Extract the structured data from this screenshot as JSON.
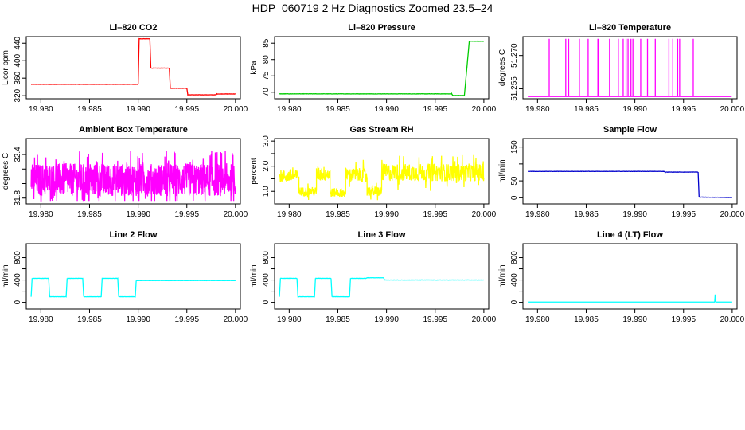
{
  "figure_title": "HDP_060719  2 Hz Diagnostics Zoomed 23.5–24",
  "chart_data": [
    {
      "type": "line",
      "title": "Li–820 CO2",
      "ylabel": "Licor ppm",
      "xlim": [
        19.9785,
        20.0005
      ],
      "xticks": [
        19.98,
        19.985,
        19.99,
        19.995,
        20.0
      ],
      "xtick_labels": [
        "19.980",
        "19.985",
        "19.990",
        "19.995",
        "20.000"
      ],
      "ylim": [
        313,
        455
      ],
      "yticks": [
        320,
        360,
        400,
        440
      ],
      "ytick_labels": [
        "320",
        "360",
        "400",
        "440"
      ],
      "color": "#ff0000",
      "step": true,
      "noise": 0.6,
      "x": [
        19.979,
        19.99,
        19.9901,
        19.9912,
        19.9913,
        19.9932,
        19.9933,
        19.995,
        19.9951,
        19.998,
        19.9981,
        20.0
      ],
      "y": [
        346,
        346,
        450,
        450,
        383,
        383,
        337,
        337,
        322,
        322,
        324,
        324
      ]
    },
    {
      "type": "line",
      "title": "Li–820 Pressure",
      "ylabel": "kPa",
      "xlim": [
        19.9785,
        20.0005
      ],
      "xticks": [
        19.98,
        19.985,
        19.99,
        19.995,
        20.0
      ],
      "xtick_labels": [
        "19.980",
        "19.985",
        "19.990",
        "19.995",
        "20.000"
      ],
      "ylim": [
        68,
        87
      ],
      "yticks": [
        70,
        75,
        80,
        85
      ],
      "ytick_labels": [
        "70",
        "75",
        "80",
        "85"
      ],
      "color": "#00cc00",
      "step": true,
      "noise": 0.08,
      "x": [
        19.979,
        19.9967,
        19.9968,
        19.998,
        19.9985,
        19.9986,
        20.0
      ],
      "y": [
        69.5,
        69.5,
        69.0,
        69.0,
        85.5,
        85.6,
        85.6
      ]
    },
    {
      "type": "line",
      "title": "Li–820 Temperature",
      "ylabel": "degrees C",
      "xlim": [
        19.9785,
        20.0005
      ],
      "xticks": [
        19.98,
        19.985,
        19.99,
        19.995,
        20.0
      ],
      "xtick_labels": [
        "19.980",
        "19.985",
        "19.990",
        "19.995",
        "20.000"
      ],
      "ylim": [
        51.2505,
        51.2785
      ],
      "yticks": [
        51.255,
        51.27
      ],
      "ytick_labels": [
        "51.255",
        "51.270"
      ],
      "color": "#ff00ff",
      "baseline": 51.2515,
      "spike_top": 51.2775,
      "spikes": [
        19.9812,
        19.9829,
        19.9832,
        19.9843,
        19.9852,
        19.9862,
        19.9863,
        19.9874,
        19.9883,
        19.9888,
        19.9891,
        19.9893,
        19.9896,
        19.9898,
        19.9906,
        19.9913,
        19.9921,
        19.9935,
        19.9939,
        19.9944,
        19.9946,
        19.996
      ]
    },
    {
      "type": "line",
      "title": "Ambient Box Temperature",
      "ylabel": "degrees C",
      "xlim": [
        19.9785,
        20.0005
      ],
      "xticks": [
        19.98,
        19.985,
        19.99,
        19.995,
        20.0
      ],
      "xtick_labels": [
        "19.980",
        "19.985",
        "19.990",
        "19.995",
        "20.000"
      ],
      "ylim": [
        31.72,
        32.62
      ],
      "yticks": [
        31.8,
        32.0,
        32.2,
        32.4
      ],
      "ytick_labels": [
        "31.8",
        "",
        "",
        "32.4"
      ],
      "color": "#ff00ff",
      "mean": 32.05,
      "band": 0.45,
      "ymin": 31.75,
      "ymax": 32.6,
      "x_range": [
        19.979,
        20.0
      ]
    },
    {
      "type": "line",
      "title": "Gas Stream RH",
      "ylabel": "percent",
      "xlim": [
        19.9785,
        20.0005
      ],
      "xticks": [
        19.98,
        19.985,
        19.99,
        19.995,
        20.0
      ],
      "xtick_labels": [
        "19.980",
        "19.985",
        "19.990",
        "19.995",
        "20.000"
      ],
      "ylim": [
        0.5,
        3.1
      ],
      "yticks": [
        1.0,
        1.5,
        2.0,
        2.5,
        3.0
      ],
      "ytick_labels": [
        "1.0",
        "",
        "2.0",
        "",
        "3.0"
      ],
      "color": "#ffff00",
      "segments": [
        {
          "x0": 19.979,
          "x1": 19.981,
          "mean": 1.6,
          "band": 0.5
        },
        {
          "x0": 19.981,
          "x1": 19.9828,
          "mean": 1.0,
          "band": 0.35
        },
        {
          "x0": 19.9828,
          "x1": 19.9842,
          "mean": 1.7,
          "band": 0.6
        },
        {
          "x0": 19.9842,
          "x1": 19.9858,
          "mean": 0.95,
          "band": 0.35
        },
        {
          "x0": 19.9858,
          "x1": 19.988,
          "mean": 1.65,
          "band": 0.55
        },
        {
          "x0": 19.988,
          "x1": 19.9895,
          "mean": 1.0,
          "band": 0.4
        },
        {
          "x0": 19.9895,
          "x1": 20.0,
          "mean": 1.75,
          "band": 0.7
        }
      ],
      "ymin": 0.65,
      "ymax": 3.0
    },
    {
      "type": "line",
      "title": "Sample Flow",
      "ylabel": "ml/min",
      "xlim": [
        19.9785,
        20.0005
      ],
      "xticks": [
        19.98,
        19.985,
        19.99,
        19.995,
        20.0
      ],
      "xtick_labels": [
        "19.980",
        "19.985",
        "19.990",
        "19.995",
        "20.000"
      ],
      "ylim": [
        -18,
        175
      ],
      "yticks": [
        0,
        50,
        100,
        150
      ],
      "ytick_labels": [
        "0",
        "50",
        "",
        "150"
      ],
      "color": "#0000cc",
      "step": true,
      "noise": 0.8,
      "x": [
        19.979,
        19.993,
        19.9931,
        19.9965,
        19.9966,
        19.9998,
        20.0
      ],
      "y": [
        78,
        78,
        76,
        76,
        2,
        1,
        1
      ]
    },
    {
      "type": "line",
      "title": "Line 2 Flow",
      "ylabel": "ml/min",
      "xlim": [
        19.9785,
        20.0005
      ],
      "xticks": [
        19.98,
        19.985,
        19.99,
        19.995,
        20.0
      ],
      "xtick_labels": [
        "19.980",
        "19.985",
        "19.990",
        "19.995",
        "20.000"
      ],
      "ylim": [
        -120,
        1050
      ],
      "yticks": [
        0,
        200,
        400,
        600,
        800
      ],
      "ytick_labels": [
        "0",
        "",
        "400",
        "",
        "800"
      ],
      "color": "#00ffff",
      "step": true,
      "noise": 4,
      "x": [
        19.979,
        19.9791,
        19.9808,
        19.9809,
        19.9826,
        19.9827,
        19.9843,
        19.9844,
        19.9862,
        19.9863,
        19.9879,
        19.988,
        19.9897,
        19.9898,
        20.0
      ],
      "y": [
        100,
        430,
        430,
        100,
        100,
        430,
        430,
        100,
        100,
        430,
        430,
        100,
        100,
        390,
        390
      ]
    },
    {
      "type": "line",
      "title": "Line 3 Flow",
      "ylabel": "ml/min",
      "xlim": [
        19.9785,
        20.0005
      ],
      "xticks": [
        19.98,
        19.985,
        19.99,
        19.995,
        20.0
      ],
      "xtick_labels": [
        "19.980",
        "19.985",
        "19.990",
        "19.995",
        "20.000"
      ],
      "ylim": [
        -120,
        1050
      ],
      "yticks": [
        0,
        200,
        400,
        600,
        800
      ],
      "ytick_labels": [
        "0",
        "",
        "400",
        "",
        "800"
      ],
      "color": "#00ffff",
      "step": true,
      "noise": 4,
      "x": [
        19.979,
        19.9791,
        19.9808,
        19.9809,
        19.9826,
        19.9827,
        19.9843,
        19.9844,
        19.9862,
        19.9863,
        19.9879,
        19.988,
        19.9897,
        19.9898,
        20.0
      ],
      "y": [
        100,
        430,
        430,
        100,
        100,
        430,
        430,
        100,
        100,
        430,
        430,
        440,
        440,
        400,
        400
      ]
    },
    {
      "type": "line",
      "title": "Line 4 (LT) Flow",
      "ylabel": "ml/min",
      "xlim": [
        19.9785,
        20.0005
      ],
      "xticks": [
        19.98,
        19.985,
        19.99,
        19.995,
        20.0
      ],
      "xtick_labels": [
        "19.980",
        "19.985",
        "19.990",
        "19.995",
        "20.000"
      ],
      "ylim": [
        -120,
        1050
      ],
      "yticks": [
        0,
        200,
        400,
        600,
        800
      ],
      "ytick_labels": [
        "0",
        "",
        "400",
        "",
        "800"
      ],
      "color": "#00ffff",
      "step": true,
      "noise": 0,
      "x": [
        19.979,
        19.9982,
        19.99825,
        19.9983,
        19.99835,
        20.0
      ],
      "y": [
        5,
        5,
        140,
        20,
        5,
        5
      ]
    }
  ]
}
